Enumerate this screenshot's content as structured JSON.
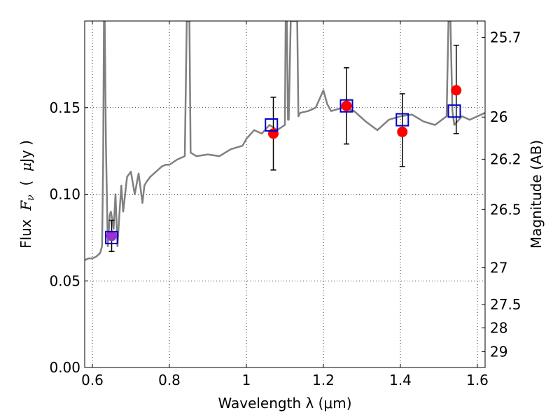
{
  "chart_data": {
    "type": "line",
    "xlabel": "Wavelength  λ (μm)",
    "ylabel_parts": [
      "Flux  ",
      "F",
      "ν",
      "  (  ",
      "μ",
      "Jy )"
    ],
    "y2label": "Magnitude (AB)",
    "xlim": [
      0.58,
      1.62
    ],
    "ylim": [
      0.0,
      0.2
    ],
    "grid": true,
    "x_ticks": [
      0.6,
      0.8,
      1.0,
      1.2,
      1.4,
      1.6
    ],
    "x_tick_labels": [
      "0.6",
      "0.8",
      "1",
      "1.2",
      "1.4",
      "1.6"
    ],
    "y_ticks": [
      0.0,
      0.05,
      0.1,
      0.15
    ],
    "y_tick_labels": [
      "0.00",
      "0.05",
      "0.10",
      "0.15"
    ],
    "mag_ticks": [
      25.7,
      26.0,
      26.2,
      26.5,
      27.0,
      27.5,
      28.0,
      29.0
    ],
    "mag_tick_labels": [
      "25.7",
      "26",
      "26.2",
      "26.5",
      "27",
      "27.5",
      "28",
      "29"
    ],
    "colors": {
      "spectrum": "#808080",
      "observed": "#ff0000",
      "model": "#0000cc",
      "overlap": "#9932cc",
      "errorbar": "#000000",
      "grid": "#000000"
    },
    "series": [
      {
        "kind": "model_spectrum",
        "x": [
          0.58,
          0.59,
          0.6,
          0.61,
          0.62,
          0.625,
          0.628,
          0.63,
          0.632,
          0.635,
          0.64,
          0.645,
          0.648,
          0.652,
          0.655,
          0.66,
          0.665,
          0.67,
          0.675,
          0.68,
          0.69,
          0.7,
          0.71,
          0.72,
          0.73,
          0.735,
          0.74,
          0.75,
          0.76,
          0.77,
          0.78,
          0.79,
          0.8,
          0.82,
          0.84,
          0.845,
          0.848,
          0.85,
          0.852,
          0.855,
          0.87,
          0.9,
          0.93,
          0.96,
          0.99,
          1.0,
          1.02,
          1.04,
          1.06,
          1.08,
          1.1,
          1.102,
          1.105,
          1.108,
          1.11,
          1.115,
          1.12,
          1.125,
          1.128,
          1.13,
          1.132,
          1.135,
          1.14,
          1.16,
          1.18,
          1.19,
          1.2,
          1.21,
          1.22,
          1.25,
          1.28,
          1.31,
          1.34,
          1.37,
          1.4,
          1.43,
          1.46,
          1.49,
          1.52,
          1.525,
          1.528,
          1.53,
          1.535,
          1.54,
          1.56,
          1.58,
          1.6,
          1.62
        ],
        "y": [
          0.062,
          0.063,
          0.063,
          0.064,
          0.066,
          0.07,
          0.12,
          0.2,
          0.2,
          0.13,
          0.07,
          0.088,
          0.09,
          0.085,
          0.08,
          0.1,
          0.07,
          0.088,
          0.105,
          0.09,
          0.11,
          0.113,
          0.1,
          0.112,
          0.095,
          0.105,
          0.107,
          0.11,
          0.112,
          0.114,
          0.116,
          0.117,
          0.117,
          0.12,
          0.122,
          0.2,
          0.2,
          0.2,
          0.2,
          0.124,
          0.122,
          0.123,
          0.122,
          0.126,
          0.128,
          0.132,
          0.137,
          0.135,
          0.14,
          0.137,
          0.14,
          0.2,
          0.2,
          0.143,
          0.143,
          0.2,
          0.2,
          0.2,
          0.2,
          0.2,
          0.2,
          0.145,
          0.147,
          0.148,
          0.15,
          0.155,
          0.16,
          0.152,
          0.148,
          0.15,
          0.148,
          0.142,
          0.137,
          0.143,
          0.145,
          0.146,
          0.142,
          0.14,
          0.145,
          0.2,
          0.2,
          0.2,
          0.148,
          0.14,
          0.145,
          0.143,
          0.145,
          0.147
        ]
      },
      {
        "kind": "observed",
        "marker": "circle",
        "x": [
          0.65,
          1.07,
          1.26,
          1.405,
          1.545
        ],
        "y": [
          0.076,
          0.135,
          0.151,
          0.136,
          0.16
        ],
        "yerr_low": [
          0.009,
          0.021,
          0.022,
          0.02,
          0.025
        ],
        "yerr_high": [
          0.009,
          0.021,
          0.022,
          0.022,
          0.026
        ]
      },
      {
        "kind": "model",
        "marker": "square",
        "x": [
          0.65,
          1.065,
          1.26,
          1.405,
          1.54
        ],
        "y": [
          0.075,
          0.14,
          0.151,
          0.143,
          0.148
        ]
      }
    ]
  }
}
